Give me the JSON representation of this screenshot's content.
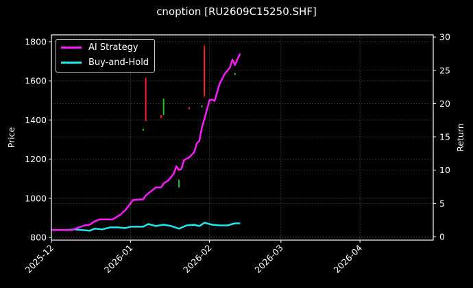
{
  "chart_data": {
    "type": "line",
    "title": "cnoption [RU2609C15250.SHF]",
    "xlabel": "",
    "ylabel": "Price",
    "ylabel_right": "Return",
    "ylim": [
      785,
      1830
    ],
    "ylim_right": [
      -0.5,
      30.3
    ],
    "yticks": [
      "800",
      "1000",
      "1200",
      "1400",
      "1600",
      "1800"
    ],
    "yticks_right": [
      "0",
      "5",
      "10",
      "15",
      "20",
      "25",
      "30"
    ],
    "xticks": [
      "2025-12",
      "2026-01",
      "2026-02",
      "2026-03",
      "2026-04"
    ],
    "grid": true,
    "legend_position": "upper left",
    "series": [
      {
        "name": "AI Strategy",
        "axis": "right",
        "color": "#ff1aff",
        "x": [
          "2025-12-01",
          "2025-12-04",
          "2025-12-07",
          "2025-12-09",
          "2025-12-11",
          "2025-12-14",
          "2025-12-16",
          "2025-12-18",
          "2025-12-20",
          "2025-12-22",
          "2025-12-25",
          "2025-12-28",
          "2025-12-30",
          "2026-01-02",
          "2026-01-05",
          "2026-01-06",
          "2026-01-07",
          "2026-01-09",
          "2026-01-11",
          "2026-01-13",
          "2026-01-14",
          "2026-01-16",
          "2026-01-18",
          "2026-01-19",
          "2026-01-20",
          "2026-01-21",
          "2026-01-22",
          "2026-01-24",
          "2026-01-26",
          "2026-01-27",
          "2026-01-28",
          "2026-01-29",
          "2026-01-30",
          "2026-02-01",
          "2026-02-02",
          "2026-02-03",
          "2026-02-05",
          "2026-02-07",
          "2026-02-09",
          "2026-02-10",
          "2026-02-11",
          "2026-02-12",
          "2026-02-13"
        ],
        "values": [
          1.0,
          1.0,
          1.0,
          1.0,
          1.3,
          1.7,
          1.8,
          2.3,
          2.6,
          2.6,
          2.6,
          3.3,
          4.0,
          5.5,
          5.6,
          5.6,
          6.2,
          6.8,
          7.4,
          7.4,
          8.0,
          8.5,
          9.5,
          10.6,
          10.0,
          10.2,
          11.5,
          11.9,
          12.7,
          14.0,
          14.4,
          16.4,
          17.7,
          20.5,
          20.6,
          20.4,
          23.0,
          24.5,
          25.4,
          26.6,
          25.8,
          26.7,
          27.5
        ]
      },
      {
        "name": "Buy-and-Hold",
        "axis": "right",
        "color": "#1fe8f0",
        "x": [
          "2025-12-01",
          "2025-12-07",
          "2025-12-10",
          "2025-12-13",
          "2025-12-16",
          "2025-12-18",
          "2025-12-21",
          "2025-12-24",
          "2025-12-27",
          "2025-12-30",
          "2026-01-01",
          "2026-01-04",
          "2026-01-06",
          "2026-01-08",
          "2026-01-11",
          "2026-01-14",
          "2026-01-17",
          "2026-01-20",
          "2026-01-23",
          "2026-01-26",
          "2026-01-28",
          "2026-01-30",
          "2026-02-02",
          "2026-02-05",
          "2026-02-08",
          "2026-02-11",
          "2026-02-13"
        ],
        "values": [
          1.0,
          1.0,
          1.1,
          1.0,
          0.9,
          1.2,
          1.1,
          1.4,
          1.4,
          1.3,
          1.5,
          1.5,
          1.5,
          1.9,
          1.6,
          1.8,
          1.6,
          1.2,
          1.7,
          1.8,
          1.6,
          2.1,
          1.8,
          1.7,
          1.7,
          2.0,
          2.0
        ]
      }
    ],
    "candles_price_axis": [
      {
        "x": "2026-01-07",
        "low": 1395,
        "high": 1615,
        "color": "#ff2020"
      },
      {
        "x": "2026-01-06",
        "low": 1345,
        "high": 1355,
        "color": "#20c020"
      },
      {
        "x": "2026-01-14",
        "low": 1425,
        "high": 1510,
        "color": "#20c020"
      },
      {
        "x": "2026-01-13",
        "low": 1410,
        "high": 1425,
        "color": "#ff2020"
      },
      {
        "x": "2026-01-20",
        "low": 1055,
        "high": 1095,
        "color": "#20c020"
      },
      {
        "x": "2026-01-24",
        "low": 1455,
        "high": 1465,
        "color": "#ff2020"
      },
      {
        "x": "2026-01-30",
        "low": 1520,
        "high": 1780,
        "color": "#ff2020"
      },
      {
        "x": "2026-01-29",
        "low": 1465,
        "high": 1475,
        "color": "#20c020"
      },
      {
        "x": "2026-02-11",
        "low": 1630,
        "high": 1640,
        "color": "#20c020"
      }
    ]
  },
  "legend": {
    "items": [
      {
        "label": "AI Strategy",
        "color": "#ff1aff"
      },
      {
        "label": "Buy-and-Hold",
        "color": "#1fe8f0"
      }
    ]
  }
}
